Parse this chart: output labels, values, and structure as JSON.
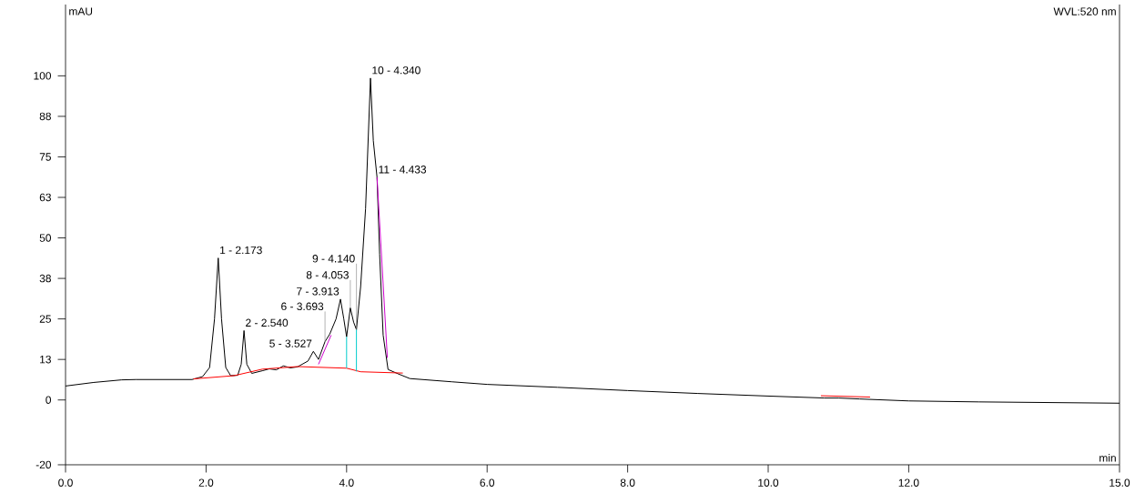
{
  "chart_data": {
    "type": "line",
    "xlabel": "min",
    "ylabel": "mAU",
    "xlim": [
      0,
      15
    ],
    "ylim": [
      -20,
      122
    ],
    "xticks": [
      {
        "value": 0,
        "label": "0.0"
      },
      {
        "value": 2,
        "label": "2.0"
      },
      {
        "value": 4,
        "label": "4.0"
      },
      {
        "value": 6,
        "label": "6.0"
      },
      {
        "value": 8,
        "label": "8.0"
      },
      {
        "value": 10,
        "label": "10.0"
      },
      {
        "value": 12,
        "label": "12.0"
      },
      {
        "value": 15,
        "label": "15.0"
      }
    ],
    "yticks": [
      -20,
      0,
      {
        "value": 12.5,
        "label": "13"
      },
      25,
      {
        "value": 37.5,
        "label": "38"
      },
      50,
      {
        "value": 62.5,
        "label": "63"
      },
      75,
      {
        "value": 87.5,
        "label": "88"
      },
      100
    ],
    "grid": false,
    "marker": "none",
    "line_style": "solid",
    "series": [
      {
        "color": "#000000",
        "x": [
          0,
          0.4,
          0.8,
          1.0,
          1.8,
          1.95,
          2.05,
          2.12,
          2.173,
          2.22,
          2.28,
          2.35,
          2.45,
          2.5,
          2.54,
          2.58,
          2.65,
          2.8,
          2.9,
          3.0,
          3.1,
          3.2,
          3.3,
          3.45,
          3.527,
          3.6,
          3.693,
          3.76,
          3.85,
          3.913,
          3.96,
          4.0,
          4.053,
          4.1,
          4.14,
          4.2,
          4.27,
          4.34,
          4.38,
          4.433,
          4.47,
          4.52,
          4.59,
          4.74,
          4.9,
          5.5,
          6.0,
          7.0,
          8.0,
          9.0,
          10.0,
          10.8,
          11.0,
          11.3,
          12.0,
          13.0,
          14.0,
          15.0
        ],
        "values": [
          4.3,
          5.4,
          6.2,
          6.3,
          6.3,
          7.2,
          10,
          25,
          43.8,
          25,
          10,
          7.5,
          7.6,
          11,
          21.4,
          11,
          8.2,
          9.0,
          9.6,
          9.3,
          10.5,
          9.9,
          10.2,
          12,
          15,
          12.5,
          18,
          20.3,
          25,
          31.1,
          25,
          19.5,
          28.4,
          24,
          21.7,
          35,
          59,
          99.3,
          80,
          68.7,
          45,
          20,
          9.4,
          8.0,
          6.6,
          5.6,
          4.8,
          3.9,
          2.9,
          2.0,
          1.2,
          0.6,
          0.6,
          0.3,
          -0.3,
          -0.6,
          -0.8,
          -1.0
        ]
      },
      {
        "color": "#ff0000",
        "x": [
          1.82,
          2.4,
          2.8,
          3.3,
          4.0,
          4.2,
          4.8
        ],
        "values": [
          6.5,
          7.5,
          9.5,
          10.3,
          9.8,
          8.7,
          8.3
        ]
      },
      {
        "color": "#ff0000",
        "x": [
          10.75,
          11.45
        ],
        "values": [
          1.3,
          0.9
        ]
      },
      {
        "color": "#cc00cc",
        "x": [
          3.6,
          3.78
        ],
        "values": [
          11,
          20
        ]
      },
      {
        "color": "#cc00cc",
        "x": [
          4.433,
          4.58
        ],
        "values": [
          68.7,
          13
        ]
      },
      {
        "color": "#00cccc",
        "x": [
          4.0,
          4.0
        ],
        "values": [
          9.8,
          19.5
        ]
      },
      {
        "color": "#00cccc",
        "x": [
          4.14,
          4.14
        ],
        "values": [
          8.8,
          21.7
        ]
      }
    ],
    "annotations": [
      "WVL:520 nm",
      {
        "text": "1 - 2.173",
        "x": 2.173,
        "y": 43.8
      },
      {
        "text": "2 - 2.540",
        "x": 2.54,
        "y": 21.4
      },
      {
        "text": "5 - 3.527",
        "x": 3.527,
        "y": 15
      },
      {
        "text": "6 - 3.693",
        "x": 3.693,
        "y": 18
      },
      {
        "text": "7 - 3.913",
        "x": 3.913,
        "y": 31.1
      },
      {
        "text": "8 - 4.053",
        "x": 4.053,
        "y": 28.4
      },
      {
        "text": "9 - 4.140",
        "x": 4.14,
        "y": 21.7
      },
      {
        "text": "10 - 4.340",
        "x": 4.34,
        "y": 99.3
      },
      {
        "text": "11 - 4.433",
        "x": 4.433,
        "y": 68.7
      }
    ]
  }
}
